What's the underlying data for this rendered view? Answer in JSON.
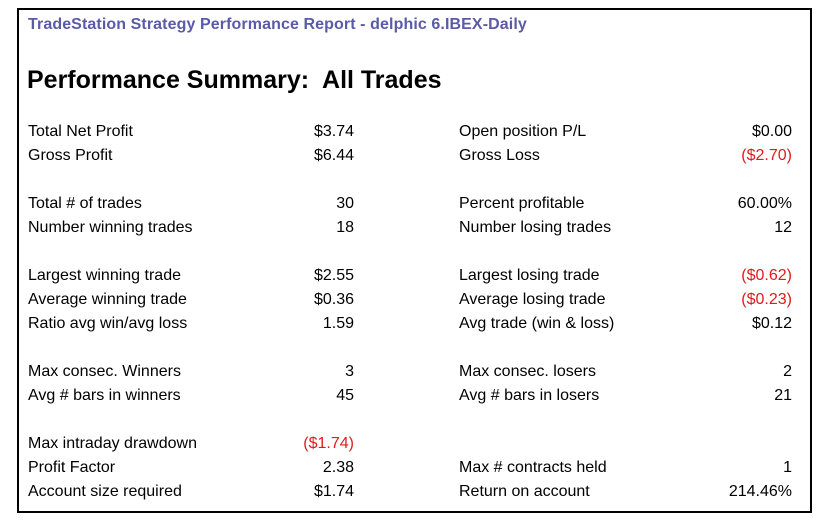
{
  "report": {
    "title": "TradeStation Strategy Performance Report - delphic 6.IBEX-Daily",
    "title_color": "#5a5aa8",
    "summary_title": "Performance Summary:  All Trades"
  },
  "colors": {
    "negative": "#e01b1b",
    "text": "#000000"
  },
  "metrics": [
    {
      "left_label": "Total Net Profit",
      "left_value": "$3.74",
      "right_label": "Open position P/L",
      "right_value": "$0.00"
    },
    {
      "left_label": "Gross Profit",
      "left_value": "$6.44",
      "right_label": "Gross Loss",
      "right_value": "($2.70)"
    },
    {
      "left_label": "Total # of trades",
      "left_value": "30",
      "right_label": "Percent profitable",
      "right_value": "60.00%"
    },
    {
      "left_label": "Number winning trades",
      "left_value": "18",
      "right_label": "Number losing trades",
      "right_value": "12"
    },
    {
      "left_label": "Largest winning trade",
      "left_value": "$2.55",
      "right_label": "Largest losing trade",
      "right_value": "($0.62)"
    },
    {
      "left_label": "Average winning trade",
      "left_value": "$0.36",
      "right_label": "Average losing trade",
      "right_value": "($0.23)"
    },
    {
      "left_label": "Ratio avg win/avg loss",
      "left_value": "1.59",
      "right_label": "Avg trade (win & loss)",
      "right_value": "$0.12"
    },
    {
      "left_label": "Max consec. Winners",
      "left_value": "3",
      "right_label": "Max consec. losers",
      "right_value": "2"
    },
    {
      "left_label": "Avg # bars in winners",
      "left_value": "45",
      "right_label": "Avg # bars in losers",
      "right_value": "21"
    },
    {
      "left_label": "Max intraday drawdown",
      "left_value": "($1.74)",
      "right_label": "",
      "right_value": ""
    },
    {
      "left_label": "Profit Factor",
      "left_value": "2.38",
      "right_label": "Max # contracts held",
      "right_value": "1"
    },
    {
      "left_label": "Account size required",
      "left_value": "$1.74",
      "right_label": "Return on account",
      "right_value": "214.46%"
    }
  ]
}
